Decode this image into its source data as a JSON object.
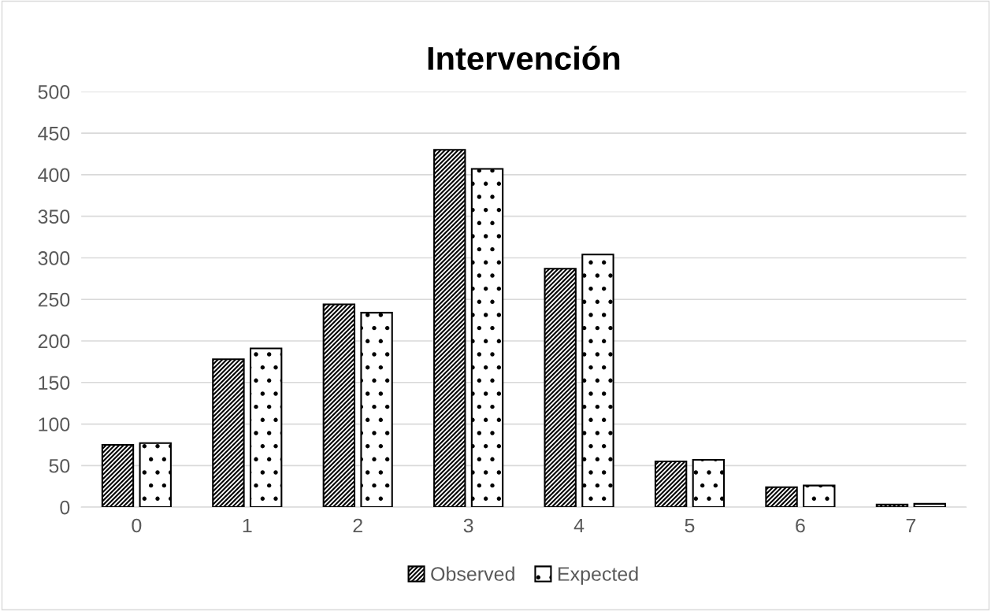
{
  "chart_data": {
    "type": "bar",
    "title": "Intervención",
    "categories": [
      "0",
      "1",
      "2",
      "3",
      "4",
      "5",
      "6",
      "7"
    ],
    "series": [
      {
        "name": "Observed",
        "color": "#000000",
        "values": [
          75,
          178,
          244,
          430,
          287,
          55,
          24,
          3
        ]
      },
      {
        "name": "Expected",
        "color": "#000000",
        "values": [
          77,
          191,
          234,
          407,
          304,
          57,
          26,
          4
        ]
      }
    ],
    "ylim": [
      0,
      500
    ],
    "yticks": [
      0,
      50,
      100,
      150,
      200,
      250,
      300,
      350,
      400,
      450,
      500
    ],
    "grid": "y",
    "legend": "bottom"
  }
}
